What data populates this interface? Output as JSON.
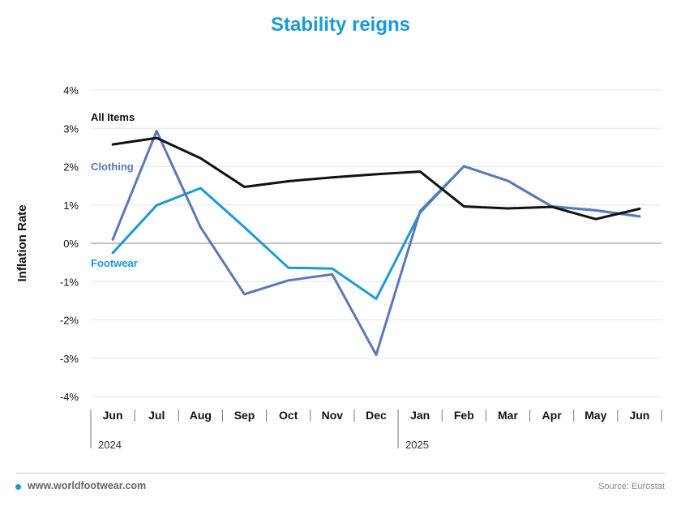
{
  "colors": {
    "title": "#1a9ad9",
    "all_items": "#111111",
    "clothing": "#5b79b8",
    "footwear": "#1a9ad9",
    "grid": "#e6e6e6",
    "zero_line": "#888888",
    "text": "#111111"
  },
  "footer": {
    "website": "www.worldfootwear.com",
    "source": "Source: Eurostat"
  },
  "chart_data": {
    "type": "line",
    "title": "Stability reigns",
    "ylabel": "Inflation Rate",
    "xlabel": "",
    "ylim": [
      -4,
      4
    ],
    "yticks": [
      4,
      3,
      2,
      1,
      0,
      -1,
      -2,
      -3,
      -4
    ],
    "ytick_labels": [
      "4%",
      "3%",
      "2%",
      "1%",
      "0%",
      "-1%",
      "-2%",
      "-3%",
      "-4%"
    ],
    "grid": true,
    "categories": [
      "Jun",
      "Jul",
      "Aug",
      "Sep",
      "Oct",
      "Nov",
      "Dec",
      "Jan",
      "Feb",
      "Mar",
      "Apr",
      "May",
      "Jun"
    ],
    "year_groups": [
      {
        "label": "2024",
        "start_index": 0
      },
      {
        "label": "2025",
        "start_index": 7
      }
    ],
    "series": [
      {
        "name": "All Items",
        "color": "#111111",
        "values": [
          2.58,
          2.75,
          2.22,
          1.47,
          1.62,
          1.72,
          1.8,
          1.87,
          0.96,
          0.91,
          0.95,
          0.63,
          0.9
        ]
      },
      {
        "name": "Clothing",
        "color": "#5b79b8",
        "values": [
          0.1,
          2.93,
          0.42,
          -1.33,
          -0.97,
          -0.81,
          -2.91,
          0.84,
          2.01,
          1.63,
          0.96,
          0.86,
          0.7
        ]
      },
      {
        "name": "Footwear",
        "color": "#1a9ad9",
        "values": [
          -0.25,
          0.99,
          1.44,
          0.42,
          -0.64,
          -0.66,
          -1.45,
          0.8,
          2.01,
          1.63,
          0.96,
          0.86,
          0.7
        ]
      }
    ]
  }
}
